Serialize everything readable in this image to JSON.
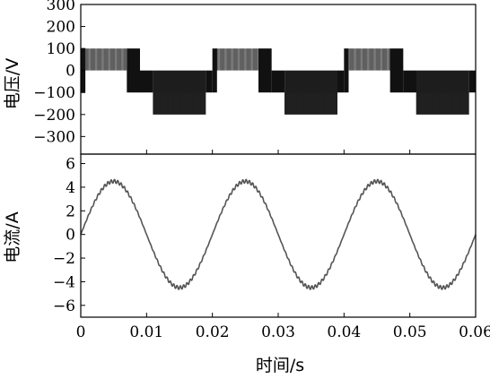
{
  "chart_data": [
    {
      "type": "line",
      "panel": "top",
      "ylabel": "电压/V",
      "ylim": [
        -380,
        300
      ],
      "yticks": [
        300,
        200,
        100,
        0,
        -100,
        -200,
        -300
      ],
      "xlim": [
        0,
        0.06
      ],
      "color": "#000000",
      "waveform": "five-level PWM voltage",
      "levels": [
        -200,
        -100,
        0,
        100
      ],
      "period_s": 0.02,
      "positive_segment_s": [
        0.0,
        0.009
      ],
      "negative_segment_s": [
        0.011,
        0.019
      ],
      "series": [
        {
          "values": []
        }
      ]
    },
    {
      "type": "line",
      "panel": "bottom",
      "ylabel": "电流/A",
      "xlabel": "时间/s",
      "ylim": [
        -7,
        6.8
      ],
      "yticks": [
        6,
        4,
        2,
        0,
        -2,
        -4,
        -6
      ],
      "xlim": [
        0,
        0.06
      ],
      "xticks": [
        "0",
        "0.01",
        "0.02",
        "0.03",
        "0.04",
        "0.05",
        "0.06"
      ],
      "xtick_values": [
        0,
        0.01,
        0.02,
        0.03,
        0.04,
        0.05,
        0.06
      ],
      "color": "#555555",
      "amplitude_A": 4.5,
      "frequency_Hz": 50,
      "ripple_A": 0.15,
      "series": [
        {
          "x": [
            0,
            0.005,
            0.01,
            0.015,
            0.02,
            0.025,
            0.03,
            0.035,
            0.04,
            0.045,
            0.05,
            0.055,
            0.06
          ],
          "values": [
            0,
            4.5,
            0,
            -4.5,
            0,
            4.5,
            0,
            -4.5,
            0,
            4.5,
            0,
            -4.5,
            0
          ]
        }
      ]
    }
  ]
}
